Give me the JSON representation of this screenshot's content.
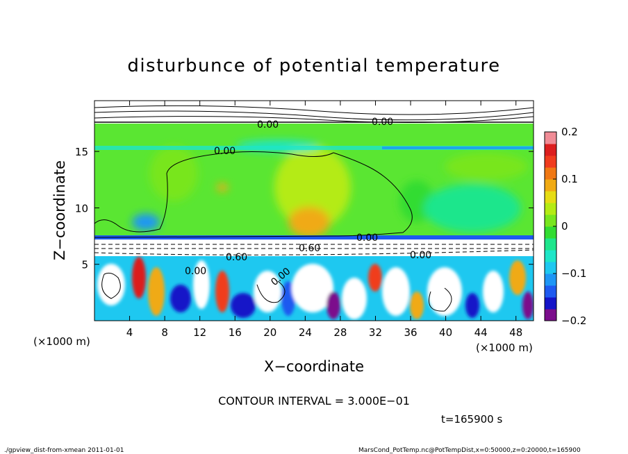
{
  "chart_data": {
    "type": "heatmap",
    "title": "disturbunce of potential temperature",
    "xlabel": "X−coordinate",
    "ylabel": "Z−coordinate",
    "x_unit": "(×1000 m)",
    "y_unit": "(×1000 m)",
    "xlim": [
      0,
      50
    ],
    "ylim": [
      0,
      19.5
    ],
    "x_ticks": [
      4,
      8,
      12,
      16,
      20,
      24,
      28,
      32,
      36,
      40,
      44,
      48
    ],
    "y_ticks": [
      5,
      10,
      15
    ],
    "colorbar": {
      "range": [
        -0.2,
        0.2
      ],
      "tick_values": [
        0.2,
        0.1,
        0,
        -0.1,
        -0.2
      ],
      "tick_labels": [
        "0.2",
        "0.1",
        "0",
        "−0.1",
        "−0.2"
      ],
      "colors": [
        "#7b0d8c",
        "#1414c8",
        "#1e5af0",
        "#1e96f5",
        "#1ec8f0",
        "#1ee6c8",
        "#1ee68c",
        "#32dc32",
        "#78e61e",
        "#b4eb14",
        "#e6dc14",
        "#f0aa14",
        "#f07814",
        "#f03c1e",
        "#dc1e1e",
        "#f08c96"
      ]
    },
    "contour_labels": [
      "0.00",
      "0.00",
      "0.00",
      "0.00",
      "0.00",
      "0.60",
      "0.60",
      "0.00",
      "0.00"
    ],
    "contour_interval_text": "CONTOUR INTERVAL = 3.000E−01",
    "time_text": "t=165900 s"
  },
  "footer": {
    "left": "./gpview_dist-from-xmean  2011-01-01",
    "right": "MarsCond_PotTemp.nc@PotTempDist,x=0:50000,z=0:20000,t=165900"
  }
}
